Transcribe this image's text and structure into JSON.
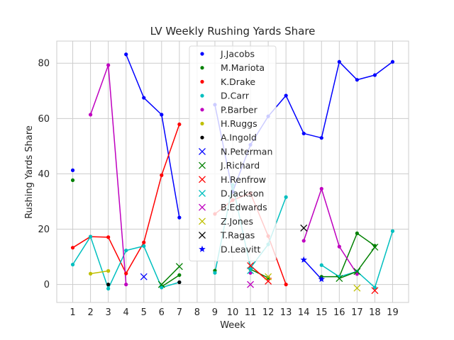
{
  "chart_data": {
    "type": "line",
    "title": "LV Weekly Rushing Yards Share",
    "xlabel": "Week",
    "ylabel": "Rushing Yards Share",
    "xlim": [
      0.1,
      19.9
    ],
    "ylim": [
      -6.5,
      88
    ],
    "xticks": [
      1,
      2,
      3,
      4,
      5,
      6,
      7,
      8,
      9,
      10,
      11,
      12,
      13,
      14,
      15,
      16,
      17,
      18,
      19
    ],
    "yticks": [
      0,
      20,
      40,
      60,
      80
    ],
    "grid": true,
    "legend_position": "upper-center",
    "series": [
      {
        "name": "J.Jacobs",
        "color": "#0000ff",
        "marker": "dot",
        "line": true,
        "points": [
          [
            1,
            41.3
          ],
          [
            4,
            83.2
          ],
          [
            5,
            67.5
          ],
          [
            6,
            61.4
          ],
          [
            7,
            24.2
          ],
          [
            9,
            65.0
          ],
          [
            10,
            33.5
          ],
          [
            11,
            50.5
          ],
          [
            12,
            60.8
          ],
          [
            13,
            68.3
          ],
          [
            14,
            54.6
          ],
          [
            15,
            53.0
          ],
          [
            16,
            80.5
          ],
          [
            17,
            74.0
          ],
          [
            18,
            75.7
          ],
          [
            19,
            80.5
          ]
        ]
      },
      {
        "name": "M.Mariota",
        "color": "#008000",
        "marker": "dot",
        "line": true,
        "points": [
          [
            1,
            37.7
          ],
          [
            6,
            -0.8
          ],
          [
            7,
            3.4
          ],
          [
            9,
            5.0
          ],
          [
            11,
            5.5
          ],
          [
            12,
            2.4
          ],
          [
            15,
            2.8
          ],
          [
            16,
            2.8
          ],
          [
            17,
            18.5
          ],
          [
            18,
            14.0
          ]
        ]
      },
      {
        "name": "K.Drake",
        "color": "#ff0000",
        "marker": "dot",
        "line": true,
        "points": [
          [
            1,
            13.3
          ],
          [
            2,
            17.3
          ],
          [
            3,
            17.1
          ],
          [
            4,
            4.0
          ],
          [
            5,
            15.2
          ],
          [
            6,
            39.5
          ],
          [
            7,
            57.9
          ],
          [
            9,
            25.5
          ],
          [
            10,
            30.5
          ],
          [
            11,
            33.0
          ],
          [
            12,
            17.5
          ],
          [
            13,
            0.0
          ]
        ]
      },
      {
        "name": "D.Carr",
        "color": "#00bfbf",
        "marker": "dot",
        "line": true,
        "points": [
          [
            1,
            7.2
          ],
          [
            2,
            17.3
          ],
          [
            3,
            -1.5
          ],
          [
            4,
            12.3
          ],
          [
            5,
            13.9
          ],
          [
            6,
            -1.1
          ],
          [
            7,
            0.8
          ],
          [
            9,
            4.2
          ],
          [
            10,
            36.0
          ],
          [
            11,
            6.0
          ],
          [
            12,
            14.5
          ],
          [
            13,
            31.6
          ],
          [
            15,
            7.0
          ],
          [
            16,
            2.8
          ],
          [
            17,
            4.7
          ],
          [
            18,
            -1.1
          ],
          [
            19,
            19.3
          ]
        ]
      },
      {
        "name": "P.Barber",
        "color": "#bf00bf",
        "marker": "dot",
        "line": true,
        "points": [
          [
            2,
            61.4
          ],
          [
            3,
            79.3
          ],
          [
            4,
            0.0
          ],
          [
            11,
            4.2
          ],
          [
            14,
            15.8
          ],
          [
            15,
            34.6
          ],
          [
            16,
            13.7
          ],
          [
            17,
            3.8
          ]
        ]
      },
      {
        "name": "H.Ruggs",
        "color": "#bfbf00",
        "marker": "dot",
        "line": true,
        "points": [
          [
            2,
            3.9
          ],
          [
            3,
            4.9
          ]
        ]
      },
      {
        "name": "A.Ingold",
        "color": "#000000",
        "marker": "dot",
        "line": false,
        "points": [
          [
            3,
            0.0
          ],
          [
            7,
            0.8
          ]
        ]
      },
      {
        "name": "N.Peterman",
        "color": "#0000ff",
        "marker": "x",
        "line": false,
        "points": [
          [
            5,
            2.8
          ]
        ]
      },
      {
        "name": "J.Richard",
        "color": "#008000",
        "marker": "x",
        "line": true,
        "points": [
          [
            6,
            0.0
          ],
          [
            7,
            6.5
          ],
          [
            16,
            2.2
          ],
          [
            17,
            4.7
          ],
          [
            18,
            13.5
          ]
        ]
      },
      {
        "name": "H.Renfrow",
        "color": "#ff0000",
        "marker": "x",
        "line": true,
        "points": [
          [
            11,
            6.8
          ],
          [
            12,
            1.2
          ],
          [
            18,
            -2.2
          ]
        ]
      },
      {
        "name": "D.Jackson",
        "color": "#00bfbf",
        "marker": "x",
        "line": false,
        "points": [
          [
            11,
            5.0
          ]
        ]
      },
      {
        "name": "B.Edwards",
        "color": "#bf00bf",
        "marker": "x",
        "line": false,
        "points": [
          [
            11,
            0.0
          ]
        ]
      },
      {
        "name": "Z.Jones",
        "color": "#bfbf00",
        "marker": "x",
        "line": true,
        "points": [
          [
            12,
            2.8
          ],
          [
            17,
            -1.3
          ]
        ]
      },
      {
        "name": "T.Ragas",
        "color": "#000000",
        "marker": "x",
        "line": false,
        "points": [
          [
            14,
            20.4
          ]
        ]
      },
      {
        "name": "D.Leavitt",
        "color": "#0000ff",
        "marker": "star",
        "line": true,
        "points": [
          [
            14,
            8.9
          ],
          [
            15,
            1.9
          ]
        ]
      }
    ]
  }
}
